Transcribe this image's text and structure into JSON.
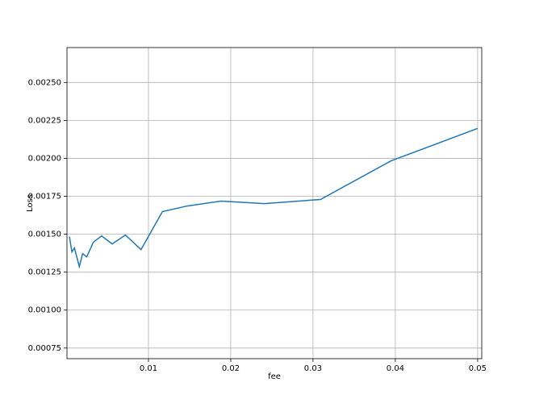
{
  "chart_data": {
    "type": "line",
    "x_label": "fee",
    "y_label": "Loss",
    "x": [
      0.0004,
      0.0007,
      0.001,
      0.0016,
      0.002,
      0.0025,
      0.0033,
      0.0043,
      0.0056,
      0.0072,
      0.0091,
      0.0117,
      0.0147,
      0.0188,
      0.0241,
      0.0309,
      0.0395,
      0.05
    ],
    "series": [
      {
        "color": "#1f77b4",
        "values": [
          0.001484,
          0.001383,
          0.00141,
          0.001287,
          0.001372,
          0.001351,
          0.001447,
          0.001489,
          0.001436,
          0.001495,
          0.001399,
          0.001649,
          0.001686,
          0.001718,
          0.001702,
          0.001729,
          0.001984,
          0.002197
        ]
      }
    ],
    "xlim": [
      0.0001,
      0.0505
    ],
    "ylim": [
      0.00068,
      0.00273
    ],
    "xticks": [
      0.01,
      0.02,
      0.03,
      0.04,
      0.05
    ],
    "yticks": [
      {
        "value": 0.00075,
        "label": "0.00075"
      },
      {
        "value": 0.001,
        "label": "0.00100"
      },
      {
        "value": 0.00125,
        "label": "0.00125"
      },
      {
        "value": 0.0015,
        "label": "0.00150"
      },
      {
        "value": 0.00175,
        "label": "0.00175"
      },
      {
        "value": 0.002,
        "label": "0.00200"
      },
      {
        "value": 0.00225,
        "label": "0.00225"
      },
      {
        "value": 0.0025,
        "label": "0.00250"
      }
    ],
    "grid": true
  }
}
